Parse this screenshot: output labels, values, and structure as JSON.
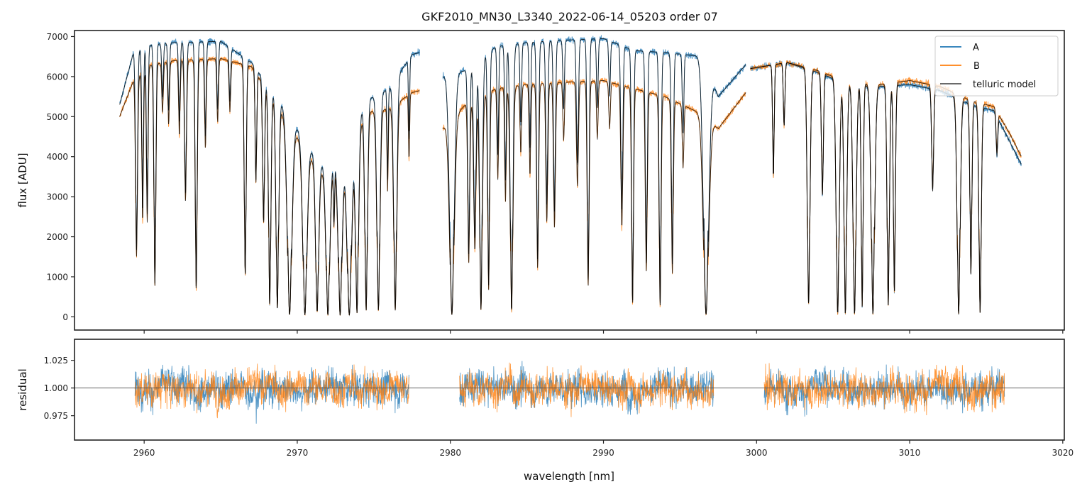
{
  "chart_data": [
    {
      "type": "line",
      "title": "GKF2010_MN30_L3340_2022-06-14_05203  order 07",
      "xlabel": "",
      "ylabel": "flux [ADU]",
      "xlim": [
        2955.45,
        3020.1
      ],
      "ylim": [
        -330,
        7150
      ],
      "xticks": [
        2960,
        2970,
        2980,
        2990,
        3000,
        3010,
        3020
      ],
      "yticks": [
        0,
        1000,
        2000,
        3000,
        4000,
        5000,
        6000,
        7000
      ],
      "ytick_labels": [
        "0",
        "1000",
        "2000",
        "3000",
        "4000",
        "5000",
        "6000",
        "7000"
      ],
      "grid": false,
      "legend_position": "top-right",
      "legend": [
        "A",
        "B",
        "telluric model"
      ],
      "series": [
        {
          "name": "A",
          "color": "#1f77b4"
        },
        {
          "name": "B",
          "color": "#ff7f0e"
        },
        {
          "name": "telluric model",
          "color": "#000000"
        }
      ],
      "segments": [
        {
          "x": [
            2958.4,
            2978.0
          ]
        },
        {
          "x": [
            2979.5,
            2999.3
          ]
        },
        {
          "x": [
            2999.6,
            3017.3
          ]
        }
      ],
      "continuum": {
        "A": [
          [
            2958.4,
            5300
          ],
          [
            2959.3,
            6600
          ],
          [
            2960.5,
            6800
          ],
          [
            2962,
            6850
          ],
          [
            2965,
            6880
          ],
          [
            2967,
            6350
          ],
          [
            2969,
            5300
          ],
          [
            2971.5,
            3800
          ],
          [
            2973,
            4000
          ],
          [
            2974.5,
            5400
          ],
          [
            2976,
            5700
          ],
          [
            2977.5,
            6550
          ],
          [
            2978.0,
            6600
          ],
          [
            2979.5,
            6000
          ],
          [
            2981,
            6150
          ],
          [
            2983,
            6750
          ],
          [
            2985,
            6850
          ],
          [
            2987,
            6900
          ],
          [
            2990,
            6950
          ],
          [
            2992,
            6650
          ],
          [
            2994,
            6600
          ],
          [
            2996.5,
            6500
          ],
          [
            2997.5,
            5500
          ],
          [
            2999.3,
            6300
          ],
          [
            2999.6,
            6200
          ],
          [
            3002,
            6350
          ],
          [
            3004,
            6100
          ],
          [
            3006,
            5800
          ],
          [
            3008,
            5750
          ],
          [
            3010,
            5800
          ],
          [
            3012,
            5650
          ],
          [
            3014,
            5300
          ],
          [
            3015.5,
            5150
          ],
          [
            3016.5,
            4400
          ],
          [
            3017.3,
            3800
          ]
        ],
        "B": [
          [
            2958.4,
            5000
          ],
          [
            2959.3,
            5900
          ],
          [
            2960.5,
            6300
          ],
          [
            2962,
            6400
          ],
          [
            2965,
            6450
          ],
          [
            2967,
            6250
          ],
          [
            2969,
            5100
          ],
          [
            2971.5,
            3600
          ],
          [
            2973,
            3800
          ],
          [
            2974.5,
            5100
          ],
          [
            2976,
            5200
          ],
          [
            2977.5,
            5600
          ],
          [
            2978.0,
            5650
          ],
          [
            2979.5,
            4700
          ],
          [
            2981,
            5300
          ],
          [
            2983,
            5700
          ],
          [
            2985,
            5800
          ],
          [
            2987,
            5850
          ],
          [
            2990,
            5900
          ],
          [
            2992,
            5700
          ],
          [
            2994,
            5500
          ],
          [
            2996.5,
            5050
          ],
          [
            2997.5,
            4700
          ],
          [
            2999.3,
            5600
          ],
          [
            2999.6,
            6200
          ],
          [
            3002,
            6350
          ],
          [
            3004,
            6150
          ],
          [
            3006,
            5850
          ],
          [
            3008,
            5800
          ],
          [
            3010,
            5900
          ],
          [
            3012,
            5750
          ],
          [
            3014,
            5400
          ],
          [
            3015.5,
            5250
          ],
          [
            3016.5,
            4600
          ],
          [
            3017.3,
            4000
          ]
        ]
      },
      "absorption_lines": [
        [
          2959.5,
          0.75,
          0.05
        ],
        [
          2959.9,
          0.62,
          0.04
        ],
        [
          2960.2,
          0.62,
          0.04
        ],
        [
          2960.7,
          0.88,
          0.05
        ],
        [
          2961.2,
          0.2,
          0.04
        ],
        [
          2961.6,
          0.25,
          0.04
        ],
        [
          2962.3,
          0.3,
          0.04
        ],
        [
          2962.7,
          0.55,
          0.05
        ],
        [
          2963.4,
          0.9,
          0.05
        ],
        [
          2964.0,
          0.35,
          0.04
        ],
        [
          2964.8,
          0.25,
          0.04
        ],
        [
          2965.6,
          0.2,
          0.04
        ],
        [
          2966.6,
          0.84,
          0.05
        ],
        [
          2967.3,
          0.45,
          0.04
        ],
        [
          2967.8,
          0.6,
          0.05
        ],
        [
          2968.2,
          0.95,
          0.06
        ],
        [
          2968.7,
          0.96,
          0.07
        ],
        [
          2969.5,
          0.99,
          0.12
        ],
        [
          2970.5,
          0.99,
          0.11
        ],
        [
          2971.3,
          0.97,
          0.08
        ],
        [
          2972.0,
          0.99,
          0.1
        ],
        [
          2972.4,
          0.4,
          0.03
        ],
        [
          2972.8,
          0.99,
          0.1
        ],
        [
          2973.4,
          0.99,
          0.12
        ],
        [
          2973.9,
          0.98,
          0.08
        ],
        [
          2974.5,
          0.97,
          0.07
        ],
        [
          2975.3,
          0.97,
          0.08
        ],
        [
          2975.9,
          0.4,
          0.03
        ],
        [
          2976.4,
          0.97,
          0.08
        ],
        [
          2977.3,
          0.3,
          0.03
        ],
        [
          2980.1,
          0.99,
          0.12
        ],
        [
          2981.2,
          0.75,
          0.05
        ],
        [
          2981.6,
          0.7,
          0.06
        ],
        [
          2982.0,
          0.97,
          0.07
        ],
        [
          2982.5,
          0.88,
          0.05
        ],
        [
          2983.1,
          0.4,
          0.04
        ],
        [
          2983.6,
          0.5,
          0.04
        ],
        [
          2984.0,
          0.98,
          0.07
        ],
        [
          2984.6,
          0.3,
          0.04
        ],
        [
          2985.2,
          0.4,
          0.04
        ],
        [
          2985.7,
          0.8,
          0.05
        ],
        [
          2986.3,
          0.6,
          0.05
        ],
        [
          2986.8,
          0.62,
          0.05
        ],
        [
          2987.4,
          0.25,
          0.04
        ],
        [
          2988.3,
          0.45,
          0.05
        ],
        [
          2989.0,
          0.87,
          0.05
        ],
        [
          2989.6,
          0.25,
          0.04
        ],
        [
          2990.4,
          0.2,
          0.04
        ],
        [
          2991.2,
          0.62,
          0.05
        ],
        [
          2991.9,
          0.95,
          0.05
        ],
        [
          2992.8,
          0.8,
          0.05
        ],
        [
          2993.7,
          0.96,
          0.05
        ],
        [
          2994.5,
          0.8,
          0.05
        ],
        [
          2995.2,
          0.3,
          0.04
        ],
        [
          2996.7,
          0.99,
          0.14
        ],
        [
          3001.1,
          0.45,
          0.04
        ],
        [
          3001.8,
          0.25,
          0.04
        ],
        [
          3003.4,
          0.95,
          0.07
        ],
        [
          3004.3,
          0.5,
          0.05
        ],
        [
          3005.3,
          0.99,
          0.08
        ],
        [
          3005.8,
          0.99,
          0.07
        ],
        [
          3006.4,
          0.99,
          0.08
        ],
        [
          3006.9,
          0.96,
          0.05
        ],
        [
          3007.6,
          0.99,
          0.09
        ],
        [
          3008.6,
          0.95,
          0.06
        ],
        [
          3009.0,
          0.9,
          0.05
        ],
        [
          3011.5,
          0.45,
          0.05
        ],
        [
          3013.2,
          0.99,
          0.08
        ],
        [
          3014.0,
          0.8,
          0.05
        ],
        [
          3014.6,
          0.98,
          0.06
        ],
        [
          3015.7,
          0.2,
          0.04
        ]
      ]
    },
    {
      "type": "line",
      "xlabel": "wavelength [nm]",
      "ylabel": "residual",
      "xlim": [
        2955.45,
        3020.1
      ],
      "ylim": [
        0.953,
        1.044
      ],
      "xticks": [
        2960,
        2970,
        2980,
        2990,
        3000,
        3010,
        3020
      ],
      "xtick_labels": [
        "2960",
        "2970",
        "2980",
        "2990",
        "3000",
        "3010",
        "3020"
      ],
      "yticks": [
        0.975,
        1.0,
        1.025
      ],
      "ytick_labels": [
        "0.975",
        "1.000",
        "1.025"
      ],
      "reference_line": 1.0,
      "grid": false,
      "series": [
        {
          "name": "A",
          "color": "#1f77b4"
        },
        {
          "name": "B",
          "color": "#ff7f0e"
        }
      ],
      "segments": [
        {
          "x": [
            2959.4,
            2977.3
          ]
        },
        {
          "x": [
            2980.6,
            2997.2
          ]
        },
        {
          "x": [
            3000.5,
            3016.2
          ]
        }
      ],
      "noise_amplitude": 0.014
    }
  ]
}
